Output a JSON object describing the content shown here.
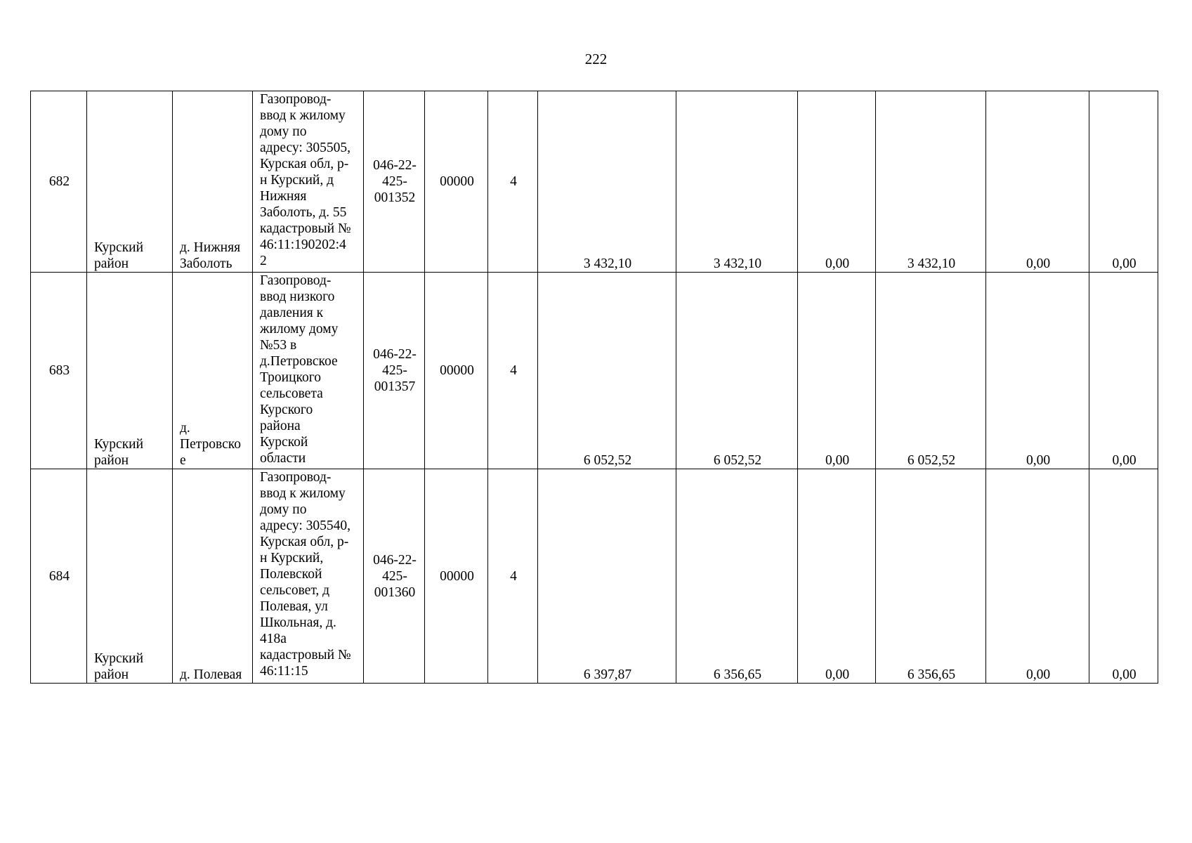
{
  "page_number": "222",
  "rows": [
    {
      "no": "682",
      "district": "Курский район",
      "locality": "д. Нижняя Заболоть",
      "description": "Газопровод-\nввод к жилому\nдому по\nадресу: 305505,\nКурская обл, р-\nн Курский, д\nНижняя\nЗаболоть, д. 55\nкадастровый №\n46:11:190202:4\n2",
      "code": "046-22-\n425-\n001352",
      "code2": "00000",
      "cat": "4",
      "v1": "3 432,10",
      "v2": "3 432,10",
      "v3": "0,00",
      "v4": "3 432,10",
      "v5": "0,00",
      "v6": "0,00"
    },
    {
      "no": "683",
      "district": "Курский район",
      "locality": "д.\nПетровско\nе",
      "description": "Газопровод-\nввод низкого\nдавления к\nжилому дому\n№53 в\nд.Петровское\nТроицкого\nсельсовета\nКурского\nрайона\nКурской\nобласти",
      "code": "046-22-\n425-\n001357",
      "code2": "00000",
      "cat": "4",
      "v1": "6 052,52",
      "v2": "6 052,52",
      "v3": "0,00",
      "v4": "6 052,52",
      "v5": "0,00",
      "v6": "0,00"
    },
    {
      "no": "684",
      "district": "Курский район",
      "locality": "д. Полевая",
      "description": "Газопровод-\nввод к жилому\nдому по\nадресу: 305540,\nКурская обл, р-\nн Курский,\nПолевской\nсельсовет, д\nПолевая, ул\nШкольная, д.\n418а\nкадастровый №\n46:11:15",
      "code": "046-22-\n425-\n001360",
      "code2": "00000",
      "cat": "4",
      "v1": "6 397,87",
      "v2": "6 356,65",
      "v3": "0,00",
      "v4": "6 356,65",
      "v5": "0,00",
      "v6": "0,00"
    }
  ]
}
